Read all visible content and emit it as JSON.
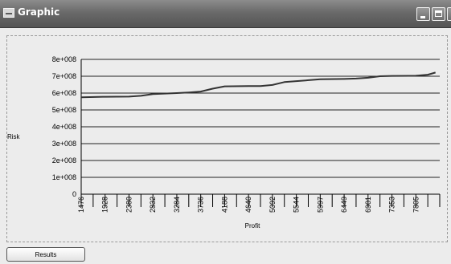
{
  "window": {
    "title": "Graphic",
    "buttons": {
      "minimize": "minimize-icon",
      "maximize": "maximize-icon",
      "close": "close-icon"
    }
  },
  "footer": {
    "results_label": "Results"
  },
  "chart_data": {
    "type": "line",
    "xlabel": "Profit",
    "ylabel": "Risk",
    "y_ticks": [
      0,
      100000000,
      200000000,
      300000000,
      400000000,
      500000000,
      600000000,
      700000000,
      800000000
    ],
    "y_tick_labels": [
      "0",
      "1e+008",
      "2e+008",
      "3e+008",
      "4e+008",
      "5e+008",
      "6e+008",
      "7e+008",
      "8e+008"
    ],
    "ylim": [
      0,
      800000000
    ],
    "x_tick_labels": [
      "1476",
      "1928",
      "2380",
      "2832",
      "3284",
      "3736",
      "4188",
      "4640",
      "5092",
      "5544",
      "5997",
      "6449",
      "6901",
      "7353",
      "7805"
    ],
    "xlim": [
      1476,
      8257
    ],
    "grid": "horizontal",
    "series": [
      {
        "x": [
          1476,
          1928,
          2380,
          2606,
          2832,
          3284,
          3510,
          3736,
          3962,
          4188,
          4640,
          4866,
          5092,
          5318,
          5544,
          5997,
          6449,
          6675,
          6901,
          7127,
          7353,
          7805,
          8031,
          8176
        ],
        "values": [
          575000000,
          578000000,
          579000000,
          584000000,
          594000000,
          600000000,
          604000000,
          609000000,
          626000000,
          640000000,
          642000000,
          642000000,
          648000000,
          665000000,
          671000000,
          682000000,
          684000000,
          686000000,
          691000000,
          700000000,
          702000000,
          703000000,
          709000000,
          722000000
        ],
        "color": "#333333"
      }
    ]
  }
}
